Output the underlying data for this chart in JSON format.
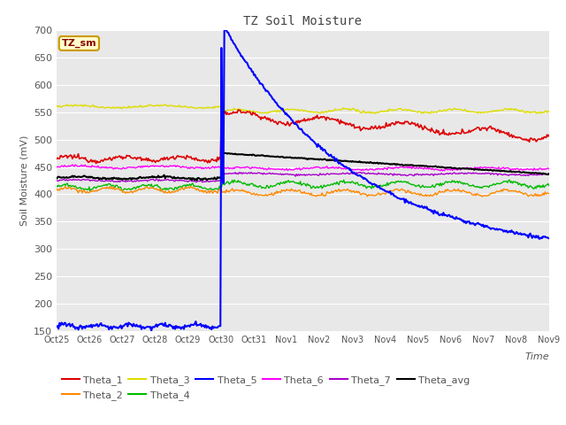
{
  "title": "TZ Soil Moisture",
  "ylabel": "Soil Moisture (mV)",
  "xlabel": "Time",
  "subtitle_box": "TZ_sm",
  "ylim": [
    150,
    700
  ],
  "yticks": [
    150,
    200,
    250,
    300,
    350,
    400,
    450,
    500,
    550,
    600,
    650,
    700
  ],
  "x_tick_labels": [
    "Oct 25",
    "Oct 26",
    "Oct 27",
    "Oct 28",
    "Oct 29",
    "Oct 30",
    "Oct 31",
    "Nov 1",
    "Nov 2",
    "Nov 3",
    "Nov 4",
    "Nov 5",
    "Nov 6",
    "Nov 7",
    "Nov 8",
    "Nov 9"
  ],
  "fig_bg_color": "#ffffff",
  "plot_bg_color": "#e8e8e8",
  "grid_color": "#ffffff",
  "series_colors": {
    "Theta_1": "#dd0000",
    "Theta_2": "#ff8800",
    "Theta_3": "#dddd00",
    "Theta_4": "#00bb00",
    "Theta_5": "#0000ff",
    "Theta_6": "#ff00ff",
    "Theta_7": "#aa00cc",
    "Theta_avg": "#000000"
  }
}
